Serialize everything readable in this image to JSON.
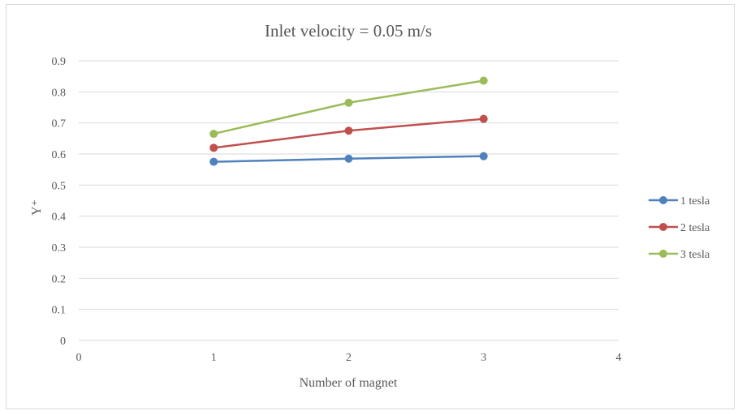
{
  "chart_data": {
    "type": "line",
    "title": "Inlet velocity = 0.05 m/s",
    "xlabel": "Number of magnet",
    "ylabel": "Y⁺",
    "xlim": [
      0,
      4
    ],
    "ylim": [
      0,
      0.9
    ],
    "xticks": [
      0,
      1,
      2,
      3,
      4
    ],
    "yticks": [
      0,
      0.1,
      0.2,
      0.3,
      0.4,
      0.5,
      0.6,
      0.7,
      0.8,
      0.9
    ],
    "grid": true,
    "legend": "right",
    "x": [
      1,
      2,
      3
    ],
    "series": [
      {
        "name": "1 tesla",
        "color": "#4f81bd",
        "values": [
          0.575,
          0.585,
          0.593
        ]
      },
      {
        "name": "2 tesla",
        "color": "#c0504d",
        "values": [
          0.62,
          0.675,
          0.713
        ]
      },
      {
        "name": "3 tesla",
        "color": "#9bbb59",
        "values": [
          0.665,
          0.765,
          0.836
        ]
      }
    ]
  }
}
